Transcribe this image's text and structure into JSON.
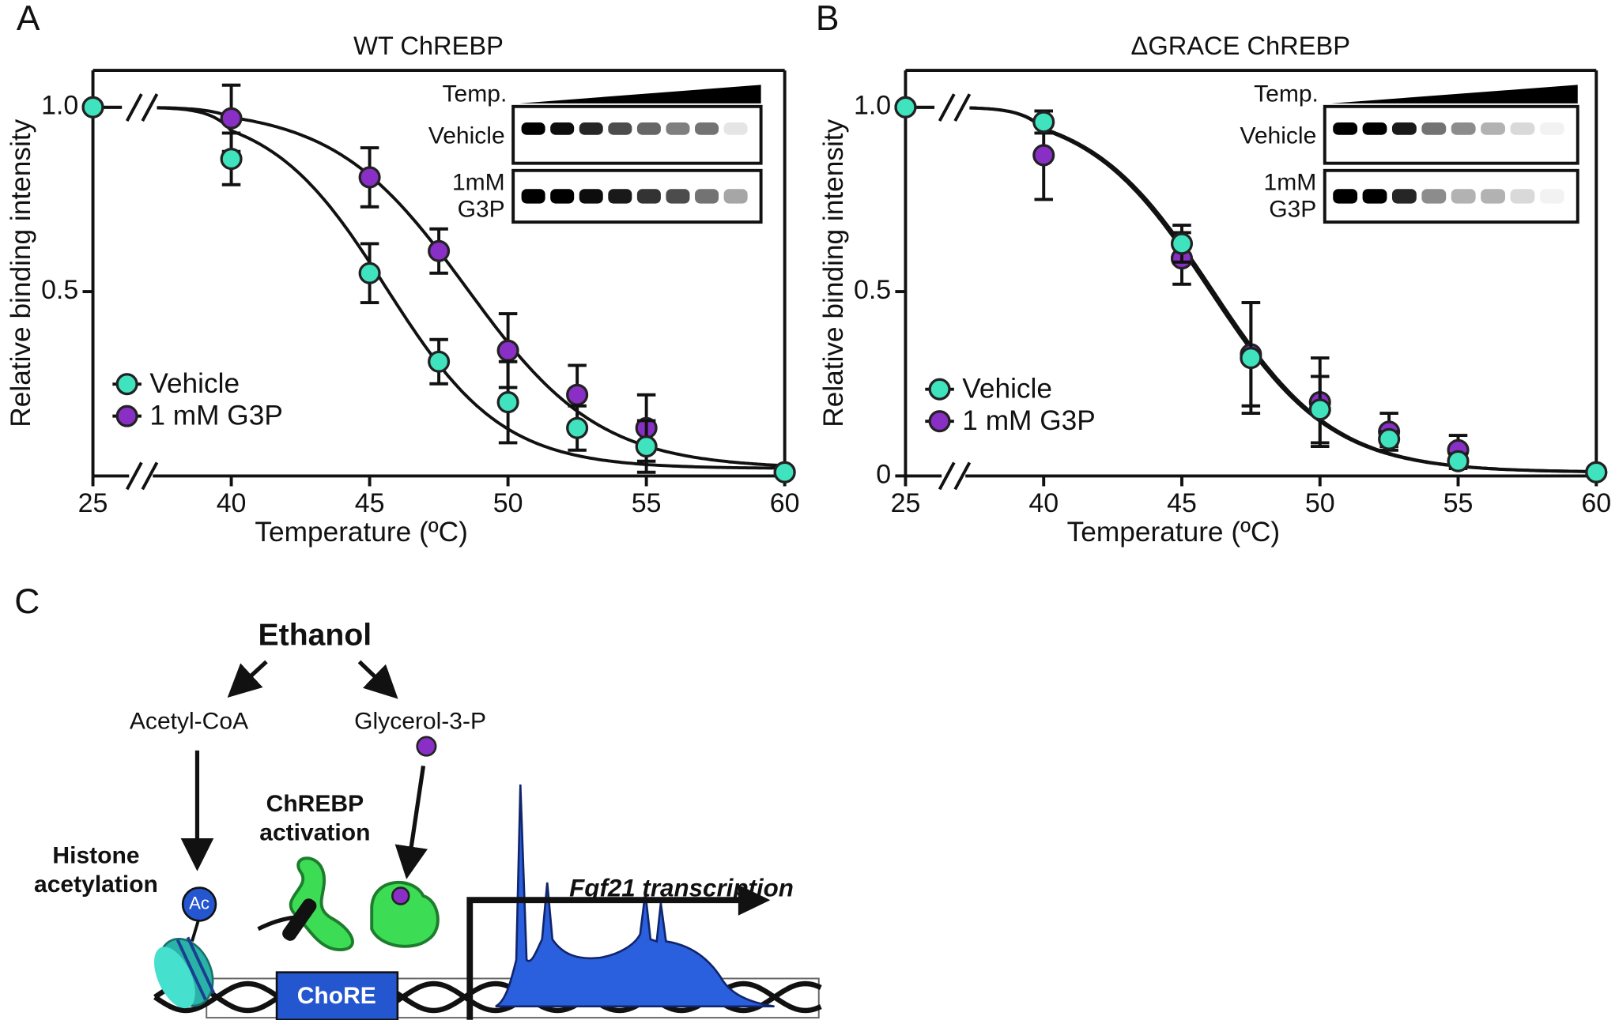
{
  "panel_labels": [
    "A",
    "B",
    "C"
  ],
  "chart_data": [
    {
      "type": "scatter",
      "title": "WT ChREBP",
      "xlabel": "Temperature (ºC)",
      "ylabel": "Relative binding intensity",
      "x": [
        25,
        40,
        45,
        47.5,
        50,
        52.5,
        55,
        60
      ],
      "xlim": [
        25,
        60
      ],
      "xticks": [
        25,
        40,
        45,
        50,
        55,
        60
      ],
      "x_axis_break": true,
      "ylim": [
        0,
        1.1
      ],
      "yticks": [
        0.5,
        {
          "value": 1,
          "label": "1.0"
        }
      ],
      "legend": "left",
      "series": [
        {
          "name": "Vehicle",
          "color": "#3fe3bd",
          "values": [
            1.0,
            0.86,
            0.55,
            0.31,
            0.2,
            0.13,
            0.08,
            0.01
          ],
          "errors": [
            0,
            0.07,
            0.08,
            0.06,
            0.11,
            0.06,
            0.07,
            0
          ],
          "fit": {
            "top": 1.0,
            "bottom": 0.02,
            "midpoint": 45.6,
            "slope": 2.1
          }
        },
        {
          "name": "1 mM G3P",
          "color": "#8a2fc6",
          "values": [
            1.0,
            0.97,
            0.81,
            0.61,
            0.34,
            0.22,
            0.13,
            0.01
          ],
          "errors": [
            0,
            0.09,
            0.08,
            0.06,
            0.1,
            0.08,
            0.09,
            0
          ],
          "fit": {
            "top": 1.0,
            "bottom": 0.02,
            "midpoint": 48.5,
            "slope": 2.4
          }
        }
      ],
      "inset": {
        "header": "Temp.",
        "rows": [
          [
            "Vehicle"
          ],
          [
            "1mM",
            "G3P"
          ]
        ]
      }
    },
    {
      "type": "scatter",
      "title": "ΔGRACE ChREBP",
      "xlabel": "Temperature (ºC)",
      "ylabel": "Relative binding intensity",
      "x": [
        25,
        40,
        45,
        47.5,
        50,
        52.5,
        55,
        60
      ],
      "xlim": [
        25,
        60
      ],
      "xticks": [
        25,
        40,
        45,
        50,
        55,
        60
      ],
      "x_axis_break": true,
      "ylim": [
        0,
        1.1
      ],
      "yticks": [
        0,
        0.5,
        {
          "value": 1,
          "label": "1.0"
        }
      ],
      "legend": "left",
      "series": [
        {
          "name": "Vehicle",
          "color": "#3fe3bd",
          "values": [
            1.0,
            0.96,
            0.63,
            0.32,
            0.18,
            0.1,
            0.04,
            0.01
          ],
          "errors": [
            0,
            0.03,
            0.05,
            0.15,
            0.09,
            0.02,
            0.02,
            0
          ],
          "fit": {
            "top": 1.0,
            "bottom": 0.01,
            "midpoint": 46.0,
            "slope": 2.2
          }
        },
        {
          "name": "1 mM G3P",
          "color": "#8a2fc6",
          "values": [
            1.0,
            0.87,
            0.59,
            0.33,
            0.2,
            0.12,
            0.07,
            0.01
          ],
          "errors": [
            0,
            0.12,
            0.07,
            0.14,
            0.12,
            0.05,
            0.04,
            0
          ],
          "fit": {
            "top": 1.0,
            "bottom": 0.01,
            "midpoint": 46.1,
            "slope": 2.2
          }
        }
      ],
      "inset": {
        "header": "Temp.",
        "rows": [
          [
            "Vehicle"
          ],
          [
            "1mM",
            "G3P"
          ]
        ]
      }
    }
  ],
  "diagram": {
    "ethanol": "Ethanol",
    "acetyl_coa": "Acetyl-CoA",
    "g3p": "Glycerol-3-P",
    "chrebp_activation": [
      "ChREBP",
      "activation"
    ],
    "histone_acetylation": [
      "Histone",
      "acetylation"
    ],
    "ac": "Ac",
    "chore": "ChoRE",
    "transcription": "Fgf21 transcription"
  }
}
